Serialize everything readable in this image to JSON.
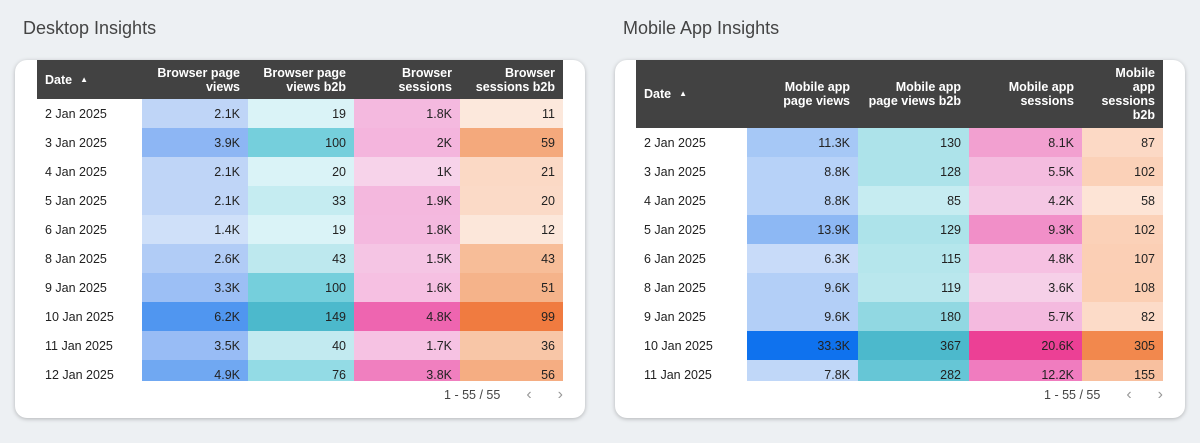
{
  "desktop": {
    "title": "Desktop Insights",
    "headers": [
      "Date",
      "Browser page views",
      "Browser page views b2b",
      "Browser sessions",
      "Browser sessions b2b"
    ],
    "sort_icon": "sort-ascending-icon",
    "rows": [
      {
        "cells": [
          "2 Jan 2025",
          "2.1K",
          "19",
          "1.8K",
          "11"
        ],
        "colors": [
          "#bfd5f7",
          "#daf3f7",
          "#f4b9df",
          "#fce8dc"
        ]
      },
      {
        "cells": [
          "3 Jan 2025",
          "3.9K",
          "100",
          "2K",
          "59"
        ],
        "colors": [
          "#8db6f4",
          "#75cfdc",
          "#f4b5dd",
          "#f4a97c"
        ]
      },
      {
        "cells": [
          "4 Jan 2025",
          "2.1K",
          "20",
          "1K",
          "21"
        ],
        "colors": [
          "#bfd5f7",
          "#daf3f7",
          "#f7d3ea",
          "#fbd9c5"
        ]
      },
      {
        "cells": [
          "5 Jan 2025",
          "2.1K",
          "33",
          "1.9K",
          "20"
        ],
        "colors": [
          "#bfd5f7",
          "#c5ecf1",
          "#f4b8de",
          "#fbdac7"
        ]
      },
      {
        "cells": [
          "6 Jan 2025",
          "1.4K",
          "19",
          "1.8K",
          "12"
        ],
        "colors": [
          "#cfe0f9",
          "#daf3f7",
          "#f4b9df",
          "#fce7da"
        ]
      },
      {
        "cells": [
          "8 Jan 2025",
          "2.6K",
          "43",
          "1.5K",
          "43"
        ],
        "colors": [
          "#b1ccf6",
          "#bde8ee",
          "#f5c5e4",
          "#f7bd98"
        ]
      },
      {
        "cells": [
          "9 Jan 2025",
          "3.3K",
          "100",
          "1.6K",
          "51"
        ],
        "colors": [
          "#9cbff5",
          "#75cfdc",
          "#f6c0e2",
          "#f5b38a"
        ]
      },
      {
        "cells": [
          "10 Jan 2025",
          "6.2K",
          "149",
          "4.8K",
          "99"
        ],
        "colors": [
          "#5096f0",
          "#4cb9cc",
          "#ee65b0",
          "#f07b40"
        ]
      },
      {
        "cells": [
          "11 Jan 2025",
          "3.5K",
          "40",
          "1.7K",
          "36"
        ],
        "colors": [
          "#98bcf5",
          "#c2eaf0",
          "#f6c2e3",
          "#f8c6a7"
        ]
      },
      {
        "cells": [
          "12 Jan 2025",
          "4.9K",
          "76",
          "3.8K",
          "56"
        ],
        "colors": [
          "#70a8f2",
          "#93dbe5",
          "#f07fbf",
          "#f5ad82"
        ]
      }
    ],
    "pagination": "1 - 55 / 55"
  },
  "mobile": {
    "title": "Mobile App Insights",
    "headers": [
      "Date",
      "Mobile app page views",
      "Mobile app page views b2b",
      "Mobile app sessions",
      "Mobile app sessions b2b"
    ],
    "sort_icon": "sort-ascending-icon",
    "rows": [
      {
        "cells": [
          "2 Jan 2025",
          "11.3K",
          "130",
          "8.1K",
          "87"
        ],
        "colors": [
          "#a6c8f6",
          "#ade3ea",
          "#f2a0d0",
          "#fcd9c5"
        ]
      },
      {
        "cells": [
          "3 Jan 2025",
          "8.8K",
          "128",
          "5.5K",
          "102"
        ],
        "colors": [
          "#b7d2f8",
          "#ade3ea",
          "#f4bcdf",
          "#fbd1b8"
        ]
      },
      {
        "cells": [
          "4 Jan 2025",
          "8.8K",
          "85",
          "4.2K",
          "58"
        ],
        "colors": [
          "#b7d2f8",
          "#c6ecf1",
          "#f5c7e4",
          "#fde4d6"
        ]
      },
      {
        "cells": [
          "5 Jan 2025",
          "13.9K",
          "129",
          "9.3K",
          "102"
        ],
        "colors": [
          "#8db8f4",
          "#ade3ea",
          "#f18fc8",
          "#fbd1b8"
        ]
      },
      {
        "cells": [
          "6 Jan 2025",
          "6.3K",
          "115",
          "4.8K",
          "107"
        ],
        "colors": [
          "#c8dbf9",
          "#b5e6ec",
          "#f6c1e2",
          "#fbcfb5"
        ]
      },
      {
        "cells": [
          "8 Jan 2025",
          "9.6K",
          "119",
          "3.6K",
          "108"
        ],
        "colors": [
          "#b3cff7",
          "#b9e7ed",
          "#f6d0e8",
          "#fbcfb4"
        ]
      },
      {
        "cells": [
          "9 Jan 2025",
          "9.6K",
          "180",
          "5.7K",
          "82"
        ],
        "colors": [
          "#b3cff7",
          "#91d8e2",
          "#f4badf",
          "#fcdbc8"
        ]
      },
      {
        "cells": [
          "10 Jan 2025",
          "33.3K",
          "367",
          "20.6K",
          "305"
        ],
        "colors": [
          "#0f72ee",
          "#4cb9cc",
          "#ec4095",
          "#f2884d"
        ]
      },
      {
        "cells": [
          "11 Jan 2025",
          "7.8K",
          "282",
          "12.2K",
          "155"
        ],
        "colors": [
          "#c0d7f8",
          "#66c6d6",
          "#f07cbf",
          "#f8c09f"
        ]
      }
    ],
    "pagination": "1 - 55 / 55"
  },
  "icons": {
    "prev": "chevron-left-icon",
    "next": "chevron-right-icon"
  }
}
